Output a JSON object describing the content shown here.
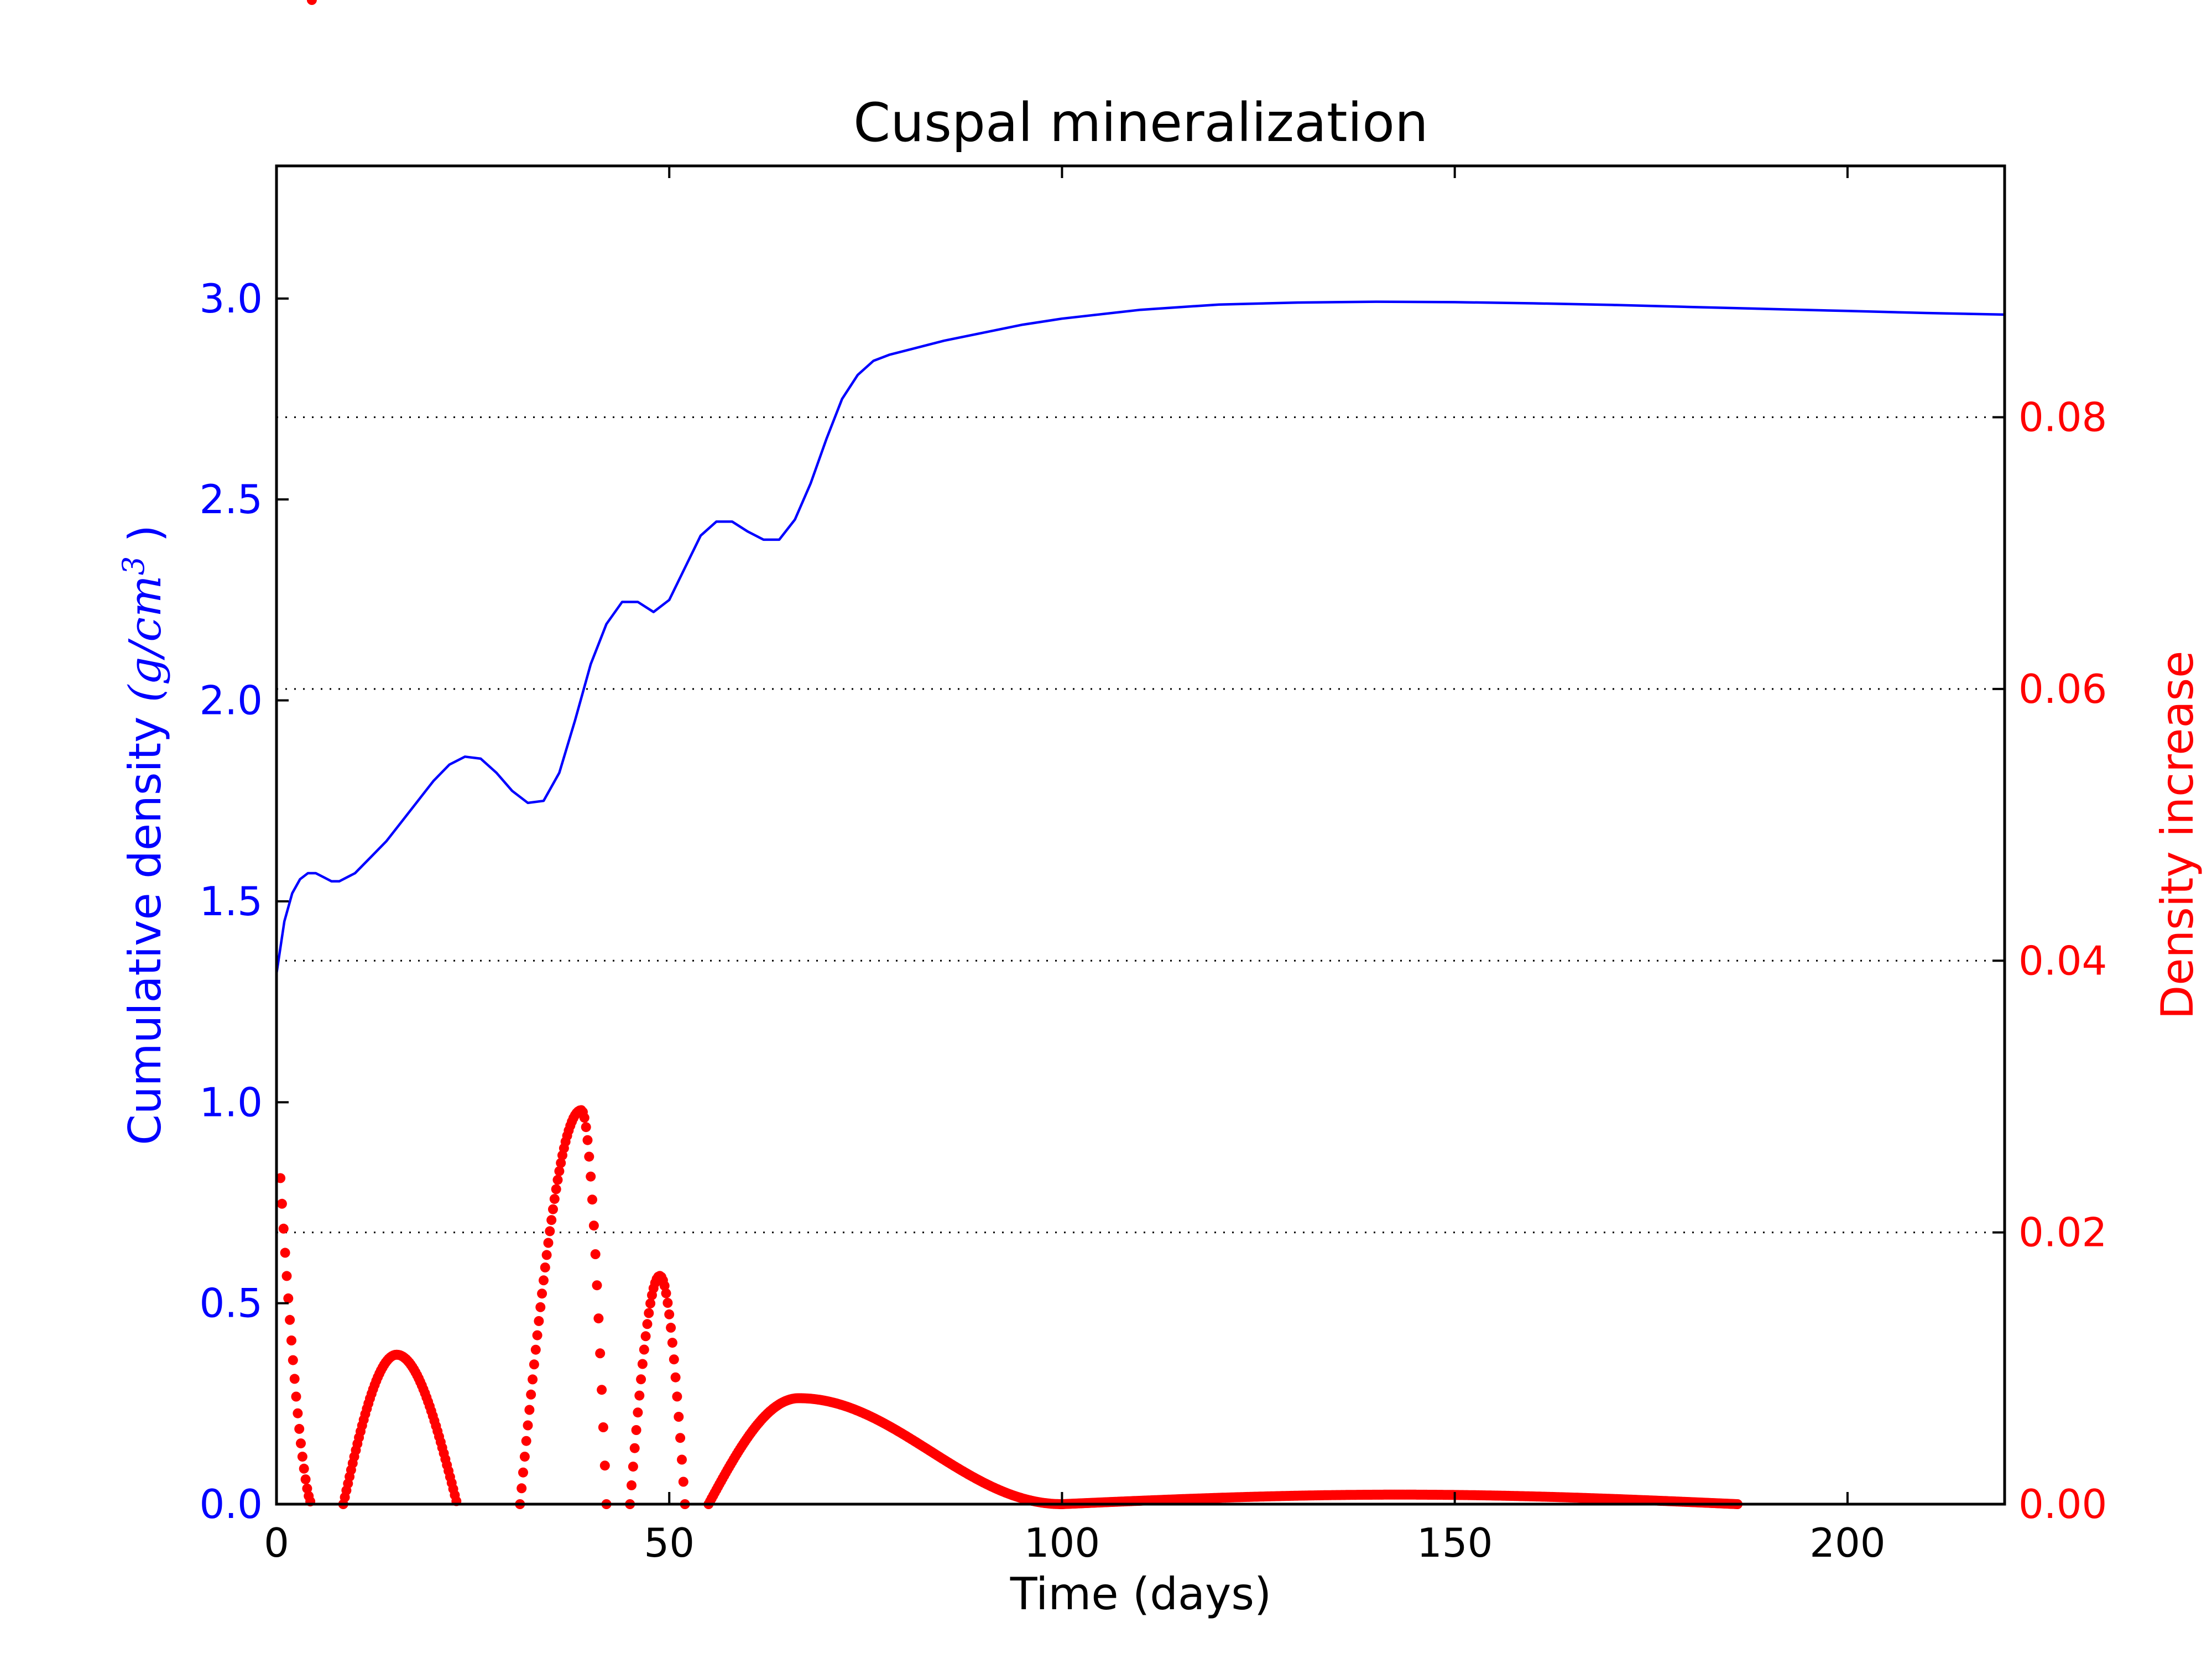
{
  "chart_data": {
    "type": "line",
    "title": "Cuspal mineralization",
    "xlabel": "Time (days)",
    "xlim": [
      0,
      220
    ],
    "xticks": [
      0,
      50,
      100,
      150,
      200
    ],
    "xtick_labels": [
      "0",
      "50",
      "100",
      "150",
      "200"
    ],
    "grid": "horizontal dotted lines at right-axis ticks",
    "left_axis": {
      "label_text": "Cumulative density ",
      "label_math": "(g/cm",
      "label_math_sup": "3",
      "label_math_close": " )",
      "ylim": [
        0,
        3.33
      ],
      "ticks": [
        0.0,
        0.5,
        1.0,
        1.5,
        2.0,
        2.5,
        3.0
      ],
      "tick_labels": [
        "0.0",
        "0.5",
        "1.0",
        "1.5",
        "2.0",
        "2.5",
        "3.0"
      ],
      "color": "#0000ff"
    },
    "right_axis": {
      "label": "Density increase",
      "ylim": [
        0,
        0.0985
      ],
      "ticks": [
        0.0,
        0.02,
        0.04,
        0.06,
        0.08
      ],
      "tick_labels": [
        "0.00",
        "0.02",
        "0.04",
        "0.06",
        "0.08"
      ],
      "color": "#ff0000"
    },
    "series": [
      {
        "axis": "left",
        "style": "line",
        "color": "#0000ff",
        "points": [
          [
            0,
            1.32
          ],
          [
            1,
            1.45
          ],
          [
            2,
            1.52
          ],
          [
            3,
            1.555
          ],
          [
            4,
            1.57
          ],
          [
            5,
            1.57
          ],
          [
            6,
            1.56
          ],
          [
            7,
            1.55
          ],
          [
            8,
            1.55
          ],
          [
            10,
            1.57
          ],
          [
            12,
            1.61
          ],
          [
            14,
            1.65
          ],
          [
            16,
            1.7
          ],
          [
            18,
            1.75
          ],
          [
            20,
            1.8
          ],
          [
            22,
            1.84
          ],
          [
            24,
            1.86
          ],
          [
            26,
            1.855
          ],
          [
            28,
            1.82
          ],
          [
            30,
            1.775
          ],
          [
            32,
            1.745
          ],
          [
            34,
            1.75
          ],
          [
            36,
            1.82
          ],
          [
            38,
            1.95
          ],
          [
            40,
            2.09
          ],
          [
            42,
            2.19
          ],
          [
            44,
            2.245
          ],
          [
            46,
            2.245
          ],
          [
            48,
            2.22
          ],
          [
            50,
            2.25
          ],
          [
            52,
            2.33
          ],
          [
            54,
            2.41
          ],
          [
            56,
            2.445
          ],
          [
            58,
            2.445
          ],
          [
            60,
            2.42
          ],
          [
            62,
            2.4
          ],
          [
            64,
            2.4
          ],
          [
            66,
            2.45
          ],
          [
            68,
            2.54
          ],
          [
            70,
            2.65
          ],
          [
            72,
            2.75
          ],
          [
            74,
            2.81
          ],
          [
            76,
            2.845
          ],
          [
            78,
            2.86
          ],
          [
            80,
            2.87
          ],
          [
            85,
            2.895
          ],
          [
            90,
            2.915
          ],
          [
            95,
            2.935
          ],
          [
            100,
            2.95
          ],
          [
            110,
            2.972
          ],
          [
            120,
            2.985
          ],
          [
            130,
            2.99
          ],
          [
            140,
            2.992
          ],
          [
            150,
            2.991
          ],
          [
            160,
            2.988
          ],
          [
            170,
            2.984
          ],
          [
            180,
            2.979
          ],
          [
            190,
            2.974
          ],
          [
            200,
            2.969
          ],
          [
            210,
            2.964
          ],
          [
            220,
            2.96
          ]
        ]
      },
      {
        "axis": "right",
        "style": "dotted-markers",
        "color": "#ff0000",
        "segments": [
          {
            "x_start": 0.5,
            "x_end": 4.5,
            "peak_x": 0.5,
            "peak_y": 0.024,
            "shape": "decay"
          },
          {
            "x_start": 8.5,
            "x_end": 23,
            "peak_x": 15.3,
            "peak_y": 0.011,
            "shape": "hump"
          },
          {
            "x_start": 31,
            "x_end": 42,
            "peak_x": 38.8,
            "peak_y": 0.029,
            "shape": "hump"
          },
          {
            "x_start": 45,
            "x_end": 52,
            "peak_x": 48.8,
            "peak_y": 0.0168,
            "shape": "hump"
          },
          {
            "x_start": 55,
            "x_end": 100,
            "peak_x": 66.5,
            "peak_y": 0.0078,
            "shape": "skew"
          },
          {
            "x_start": 100,
            "x_end": 186,
            "peak_x": 143,
            "peak_y": 0.0007,
            "shape": "hump"
          }
        ]
      }
    ]
  }
}
